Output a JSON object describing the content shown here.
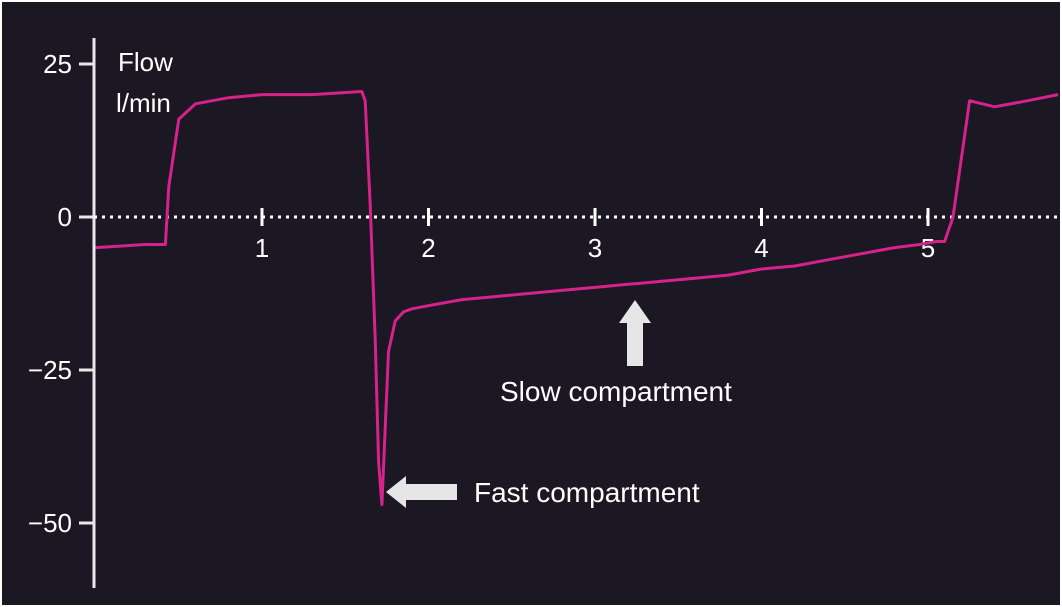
{
  "chart_data": {
    "type": "line",
    "ylabel_line1": "Flow",
    "ylabel_line2": "l/min",
    "xlabel": "",
    "ylim": [
      -60,
      30
    ],
    "xlim": [
      -1.0,
      4.8
    ],
    "y_ticks": [
      {
        "value": 25,
        "label": "25"
      },
      {
        "value": 0,
        "label": "0"
      },
      {
        "value": -25,
        "label": "−25"
      },
      {
        "value": -50,
        "label": "−50"
      }
    ],
    "x_ticks": [
      {
        "value": 0,
        "label": "1"
      },
      {
        "value": 1,
        "label": "2"
      },
      {
        "value": 2,
        "label": "3"
      },
      {
        "value": 3,
        "label": "4"
      },
      {
        "value": 4,
        "label": "5"
      }
    ],
    "zero_line": "dotted",
    "grid": false,
    "line_color": "#d6228a",
    "series": [
      {
        "x": [
          -1.0,
          -0.7,
          -0.58,
          -0.56,
          -0.5,
          -0.4,
          -0.2,
          0.0,
          0.3,
          0.6,
          0.62,
          0.65,
          0.68,
          0.7,
          0.72,
          0.76,
          0.8,
          0.85,
          0.9,
          1.0,
          1.2,
          1.4,
          1.6,
          1.8,
          2.0,
          2.2,
          2.4,
          2.6,
          2.8,
          3.0,
          3.2,
          3.4,
          3.6,
          3.8,
          3.95,
          4.05,
          4.1,
          4.15,
          4.25,
          4.4,
          4.6,
          4.8
        ],
        "y": [
          -5,
          -4.5,
          -4.5,
          5,
          16,
          18.5,
          19.5,
          20,
          20,
          20.5,
          19,
          2,
          -20,
          -40,
          -47,
          -22,
          -17,
          -15.5,
          -15,
          -14.5,
          -13.5,
          -13,
          -12.5,
          -12,
          -11.5,
          -11,
          -10.5,
          -10,
          -9.5,
          -8.5,
          -8,
          -7,
          -6,
          -5,
          -4.5,
          -4,
          -4,
          0,
          19,
          18,
          19,
          20
        ]
      }
    ],
    "annotations": [
      {
        "text": "Slow compartment",
        "arrow": "up"
      },
      {
        "text": "Fast compartment",
        "arrow": "left"
      }
    ]
  }
}
